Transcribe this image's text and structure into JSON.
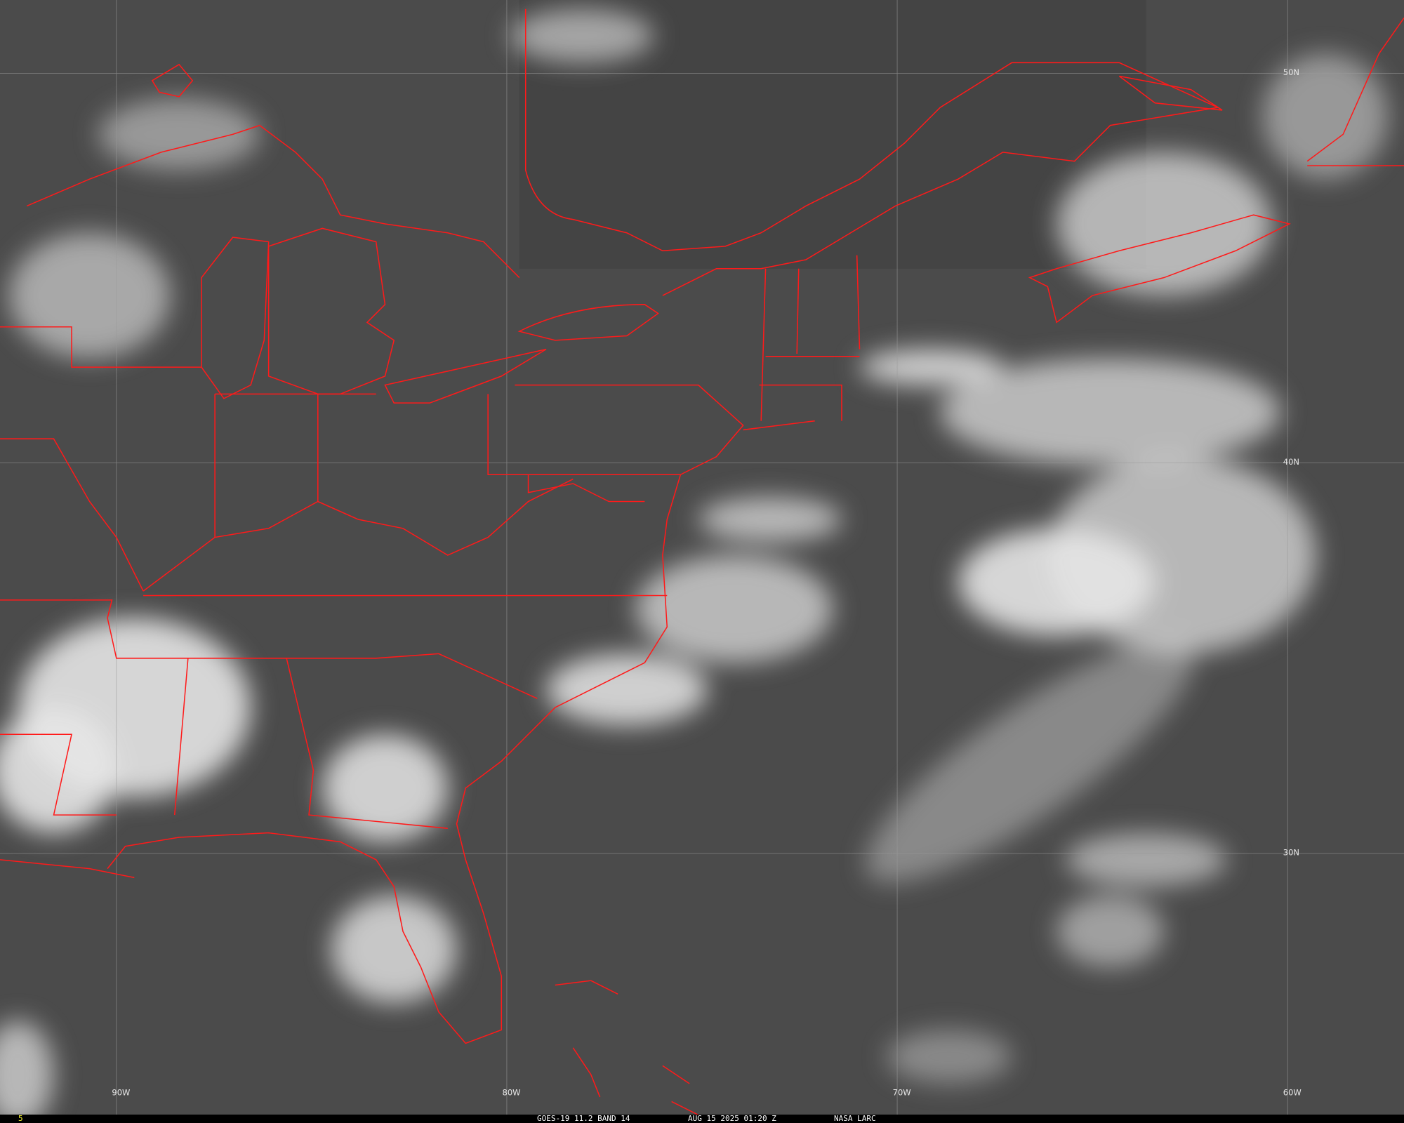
{
  "image": {
    "type": "satellite-infrared-image",
    "colors": {
      "background": "#4a4a4a",
      "clouds": "#f0f0f0",
      "borders": "#ff1a1a",
      "grid": "#9a9a9a",
      "frame_number": "#ffff33"
    }
  },
  "grid_labels": {
    "longitudes": [
      "90W",
      "80W",
      "70W",
      "60W"
    ],
    "latitudes": [
      "50N",
      "40N",
      "30N"
    ]
  },
  "status_bar": {
    "frame": "5",
    "satellite": "GOES-19 11.2 BAND 14",
    "datetime": "AUG 15 2025 01:20 Z",
    "source": "NASA LARC"
  }
}
